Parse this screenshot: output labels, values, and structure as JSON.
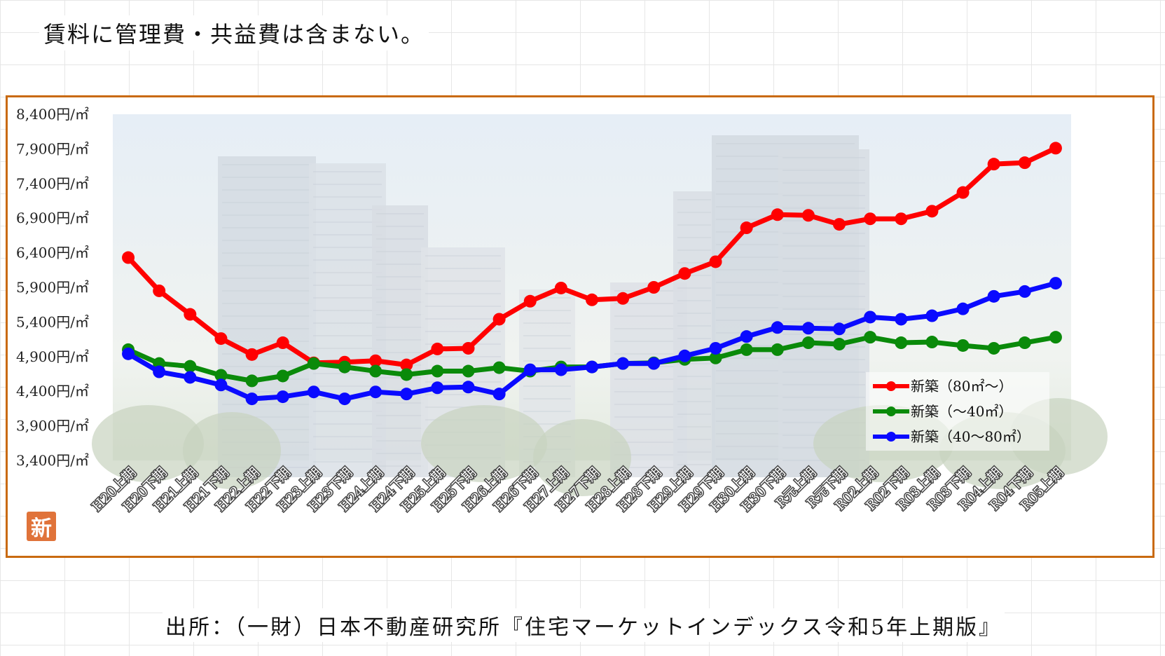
{
  "header": {
    "note": "賃料に管理費・共益費は含まない。"
  },
  "footer": {
    "source": "出所：（一財）日本不動産研究所『住宅マーケットインデックス令和5年上期版』"
  },
  "logo": {
    "text": "新"
  },
  "colors": {
    "frame": "#c96a10",
    "red": "#ff0000",
    "green": "#0a8a0a",
    "blue": "#0a0aff"
  },
  "chart_data": {
    "type": "line",
    "title": "",
    "xlabel": "",
    "ylabel": "",
    "ylim": [
      3400,
      8400
    ],
    "yticks": [
      "3,400円/㎡",
      "3,900円/㎡",
      "4,400円/㎡",
      "4,900円/㎡",
      "5,400円/㎡",
      "5,900円/㎡",
      "6,400円/㎡",
      "6,900円/㎡",
      "7,400円/㎡",
      "7,900円/㎡",
      "8,400円/㎡"
    ],
    "ytick_values": [
      3400,
      3900,
      4400,
      4900,
      5400,
      5900,
      6400,
      6900,
      7400,
      7900,
      8400
    ],
    "categories": [
      "H20上期",
      "H20下期",
      "H21上期",
      "H21下期",
      "H22上期",
      "H22下期",
      "H23上期",
      "H23下期",
      "H24上期",
      "H24下期",
      "H25上期",
      "H25下期",
      "H26上期",
      "H26下期",
      "H27上期",
      "H27下期",
      "H28上期",
      "H28下期",
      "H29上期",
      "H29下期",
      "H30上期",
      "H30下期",
      "R元上期",
      "R元下期",
      "R02上期",
      "R02下期",
      "R03上期",
      "R03下期",
      "R04上期",
      "R04下期",
      "R05上期"
    ],
    "series": [
      {
        "name": "新築（80㎡～）",
        "color": "#ff0000",
        "values": [
          6330,
          5850,
          5510,
          5160,
          4930,
          5100,
          4810,
          4820,
          4840,
          4780,
          5010,
          5020,
          5440,
          5700,
          5890,
          5720,
          5740,
          5900,
          6100,
          6270,
          6760,
          6950,
          6940,
          6810,
          6890,
          6890,
          7000,
          7270,
          7680,
          7700,
          7910
        ]
      },
      {
        "name": "新築（～40㎡）",
        "color": "#0a8a0a",
        "values": [
          5000,
          4800,
          4760,
          4630,
          4550,
          4620,
          4800,
          4750,
          4690,
          4640,
          4690,
          4690,
          4740,
          4690,
          4750,
          4750,
          4800,
          4810,
          4860,
          4880,
          5000,
          5000,
          5100,
          5080,
          5180,
          5100,
          5110,
          5060,
          5020,
          5100,
          5180
        ]
      },
      {
        "name": "新築（40～80㎡）",
        "color": "#0a0aff",
        "values": [
          4940,
          4680,
          4600,
          4490,
          4290,
          4320,
          4390,
          4290,
          4390,
          4360,
          4450,
          4460,
          4360,
          4710,
          4710,
          4750,
          4800,
          4800,
          4910,
          5020,
          5190,
          5320,
          5310,
          5300,
          5470,
          5440,
          5490,
          5590,
          5770,
          5840,
          5960
        ]
      }
    ],
    "grid": false,
    "legend": {
      "position": "bottom-right"
    }
  }
}
